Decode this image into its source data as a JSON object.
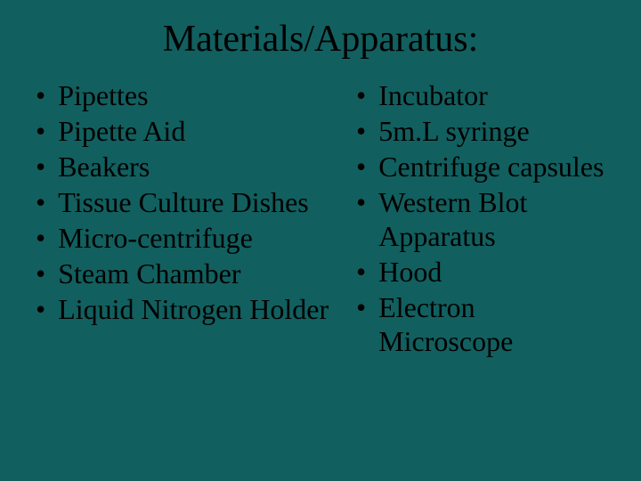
{
  "slide": {
    "title": "Materials/Apparatus:",
    "background_color": "#125f5f",
    "text_color": "#000000",
    "title_fontsize": 42,
    "body_fontsize": 32,
    "left_items": [
      "Pipettes",
      "Pipette Aid",
      "Beakers",
      "Tissue Culture Dishes",
      "Micro-centrifuge",
      "Steam Chamber",
      "Liquid Nitrogen Holder"
    ],
    "right_items": [
      "Incubator",
      "5m.L syringe",
      "Centrifuge capsules",
      "Western Blot Apparatus",
      "Hood",
      "Electron Microscope"
    ]
  }
}
